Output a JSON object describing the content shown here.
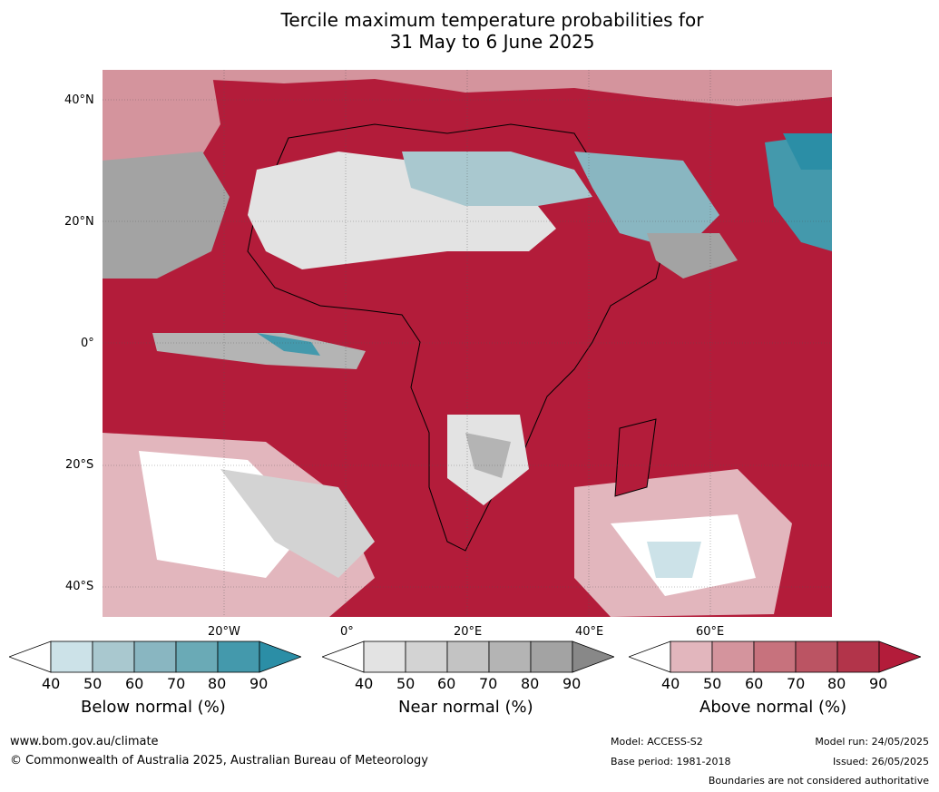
{
  "title": {
    "line1": "Tercile maximum temperature probabilities for",
    "line2": "31 May to 6 June 2025"
  },
  "map": {
    "lat_labels": [
      "40°N",
      "20°N",
      "0°",
      "20°S",
      "40°S"
    ],
    "lon_labels": [
      "20°W",
      "0°",
      "20°E",
      "40°E",
      "60°E"
    ]
  },
  "legends": [
    {
      "title": "Below normal (%)",
      "ticks": [
        "40",
        "50",
        "60",
        "70",
        "80",
        "90"
      ],
      "colors": [
        "#ffffff",
        "#cce2e8",
        "#a9c8cf",
        "#89b6c1",
        "#6aaab6",
        "#4499ac",
        "#2b8ea6"
      ]
    },
    {
      "title": "Near normal (%)",
      "ticks": [
        "40",
        "50",
        "60",
        "70",
        "80",
        "90"
      ],
      "colors": [
        "#ffffff",
        "#e3e3e3",
        "#d3d3d3",
        "#c3c3c3",
        "#b4b4b4",
        "#a3a3a3",
        "#888888"
      ]
    },
    {
      "title": "Above normal (%)",
      "ticks": [
        "40",
        "50",
        "60",
        "70",
        "80",
        "90"
      ],
      "colors": [
        "#ffffff",
        "#e2b6bd",
        "#d4949d",
        "#c7727d",
        "#bb5463",
        "#b2344a",
        "#b31c3a"
      ]
    }
  ],
  "footer": {
    "website": "www.bom.gov.au/climate",
    "copyright": "© Commonwealth of Australia 2025, Australian Bureau of Meteorology",
    "model": "Model: ACCESS-S2",
    "base_period": "Base period: 1981-2018",
    "model_run": "Model run: 24/05/2025",
    "issued": "Issued: 26/05/2025",
    "disclaimer": "Boundaries are not considered authoritative"
  }
}
